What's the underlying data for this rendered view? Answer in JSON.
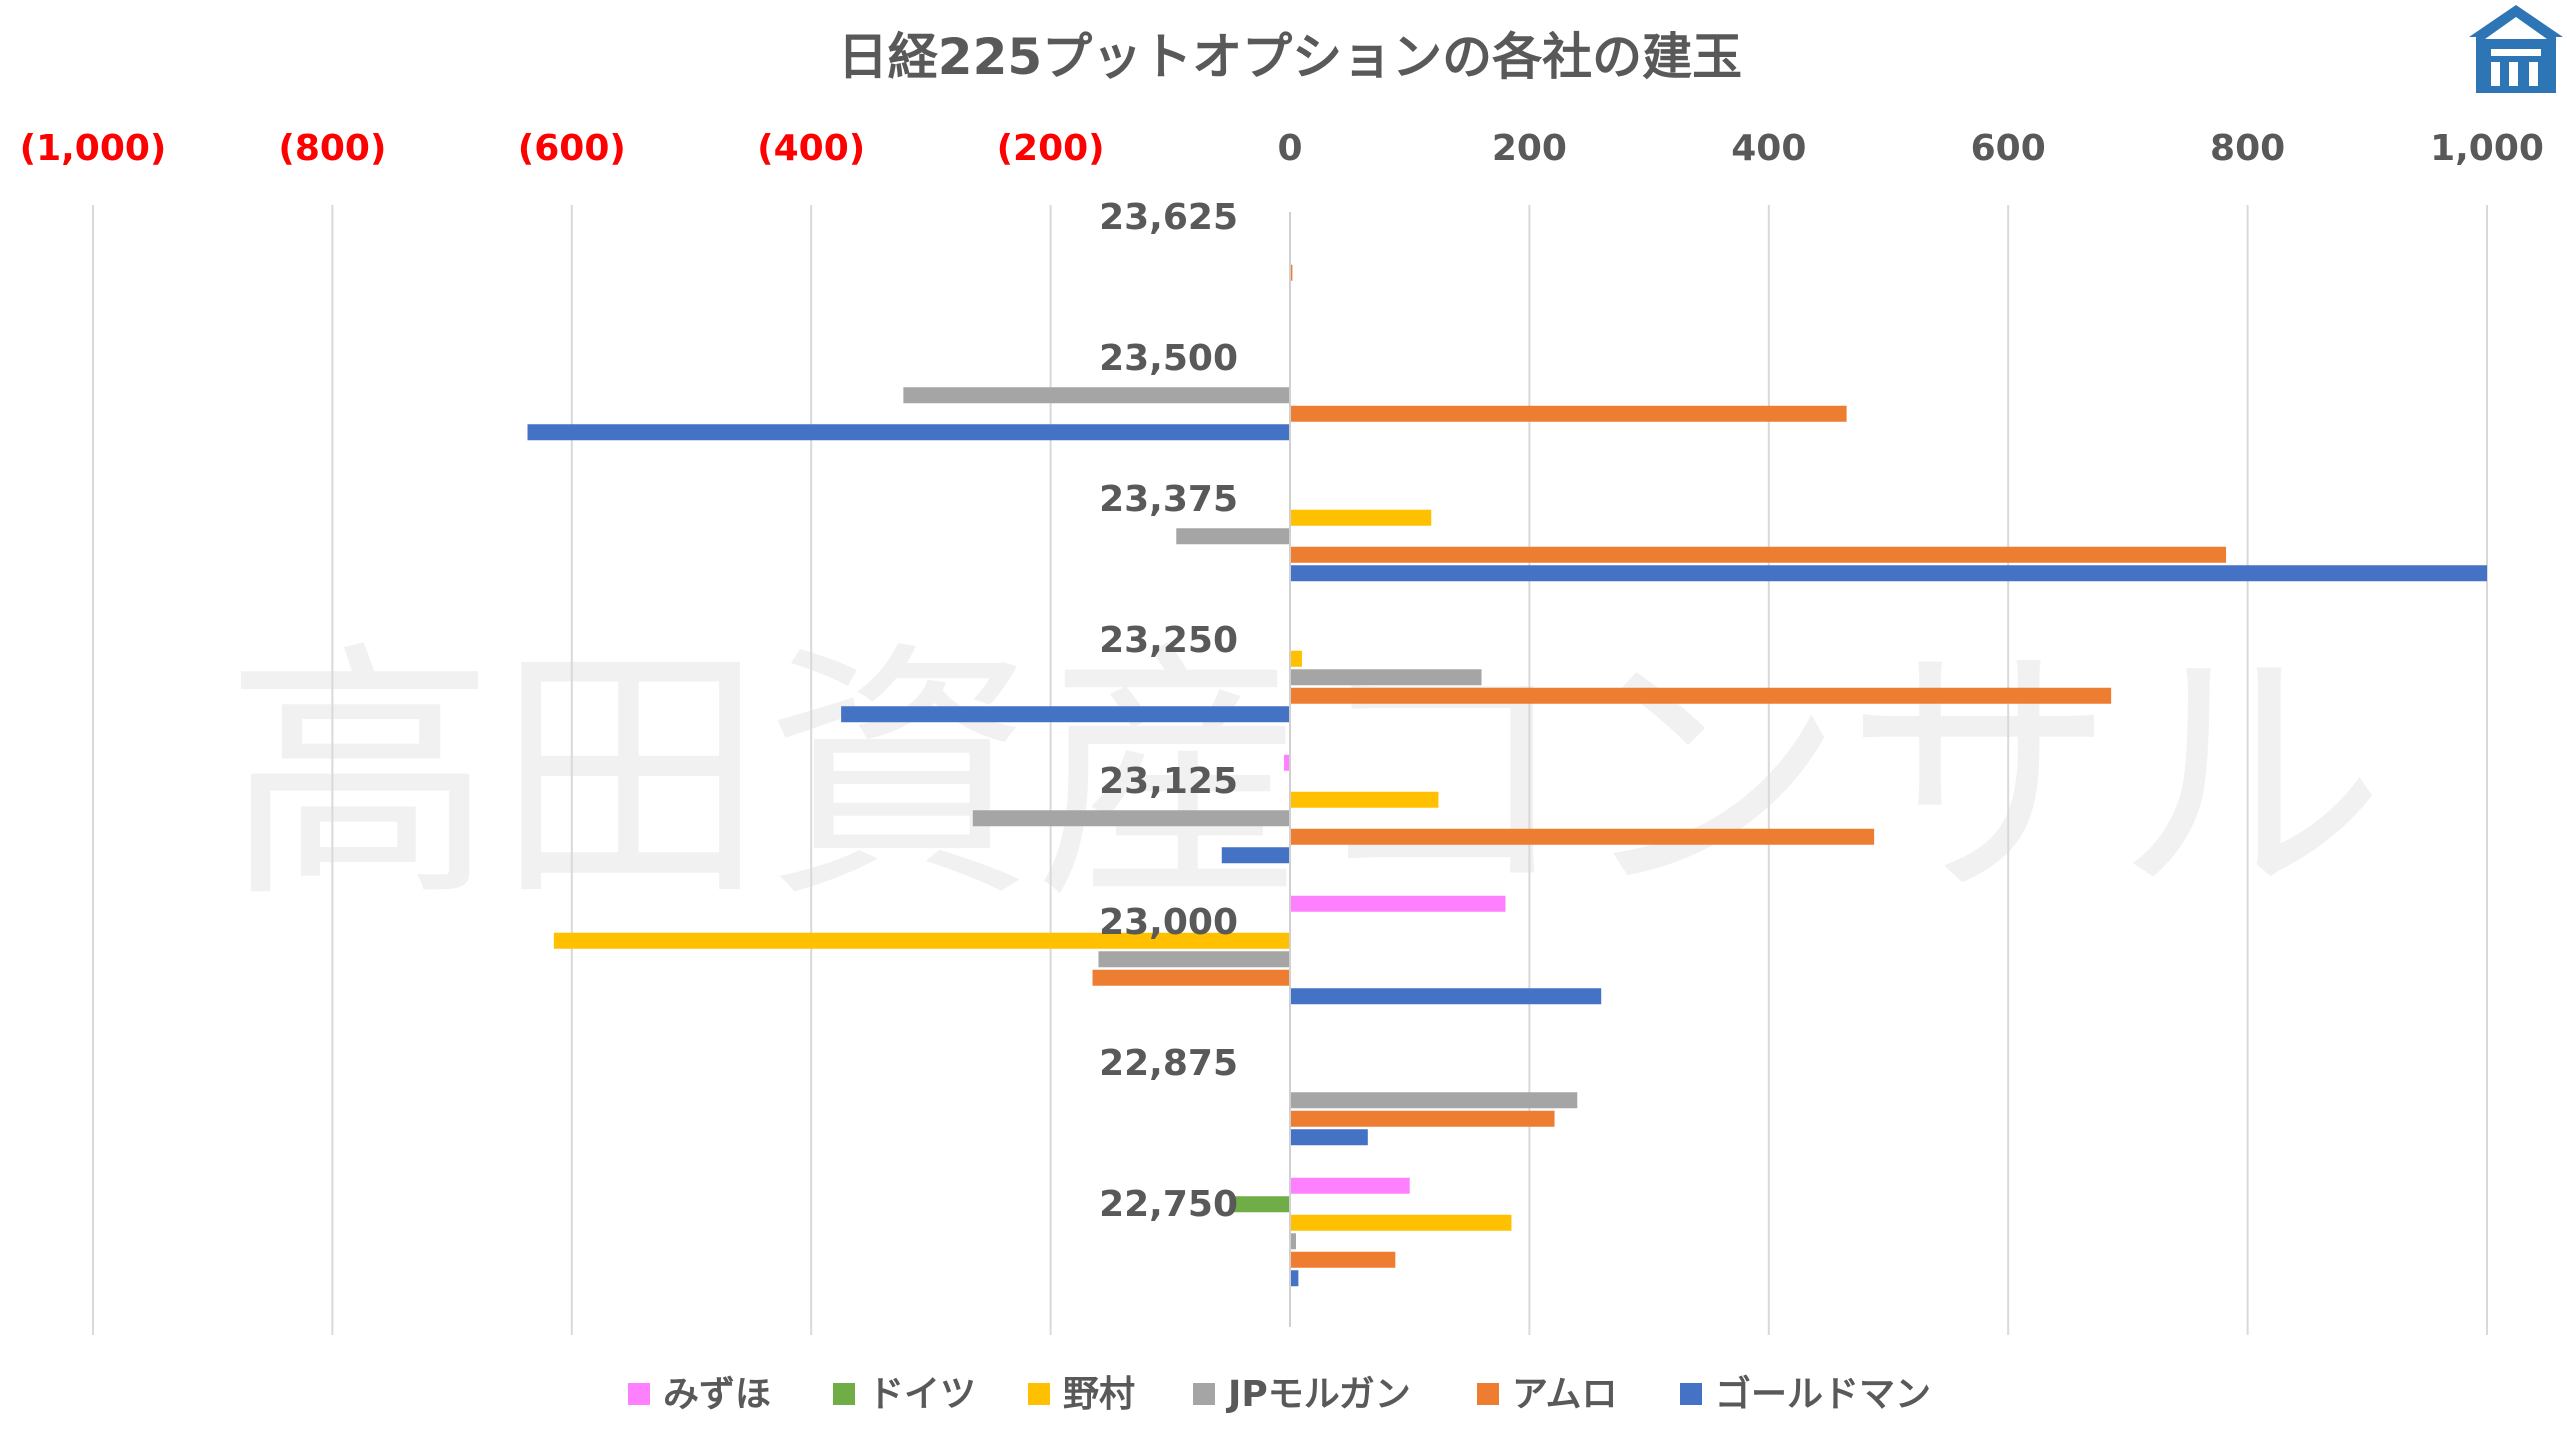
{
  "chart_data": {
    "type": "bar",
    "orientation": "horizontal",
    "title": "日経225プットオプションの各社の建玉",
    "watermark": "高田資産コンサル",
    "x_ticks": [
      "(1,000)",
      "(800)",
      "(600)",
      "(400)",
      "(200)",
      "0",
      "200",
      "400",
      "600",
      "800",
      "1,000"
    ],
    "xlim": [
      -1000,
      1000
    ],
    "grid": true,
    "legend_position": "bottom",
    "colors": {
      "negative_tick": "#ff0000",
      "positive_tick": "#595959",
      "gridline": "#d9d9d9"
    },
    "categories": [
      "23,625",
      "23,500",
      "23,375",
      "23,250",
      "23,125",
      "23,000",
      "22,875",
      "22,750"
    ],
    "series": [
      {
        "name": "みずほ",
        "color": "#ff80ff",
        "values": [
          0,
          0,
          0,
          0,
          -5,
          180,
          0,
          100
        ]
      },
      {
        "name": "ドイツ",
        "color": "#70ad47",
        "values": [
          0,
          0,
          0,
          0,
          0,
          0,
          0,
          -50
        ]
      },
      {
        "name": "野村",
        "color": "#ffc000",
        "values": [
          0,
          0,
          118,
          10,
          124,
          -615,
          0,
          185
        ]
      },
      {
        "name": "JPモルガン",
        "color": "#a5a5a5",
        "values": [
          0,
          -323,
          -95,
          160,
          -265,
          -160,
          240,
          5
        ]
      },
      {
        "name": "アムロ",
        "color": "#ed7d31",
        "values": [
          2,
          465,
          782,
          686,
          488,
          -165,
          221,
          88
        ]
      },
      {
        "name": "ゴールドマン",
        "color": "#4472c4",
        "values": [
          0,
          -637,
          1000,
          -375,
          -57,
          260,
          65,
          7
        ]
      }
    ]
  }
}
